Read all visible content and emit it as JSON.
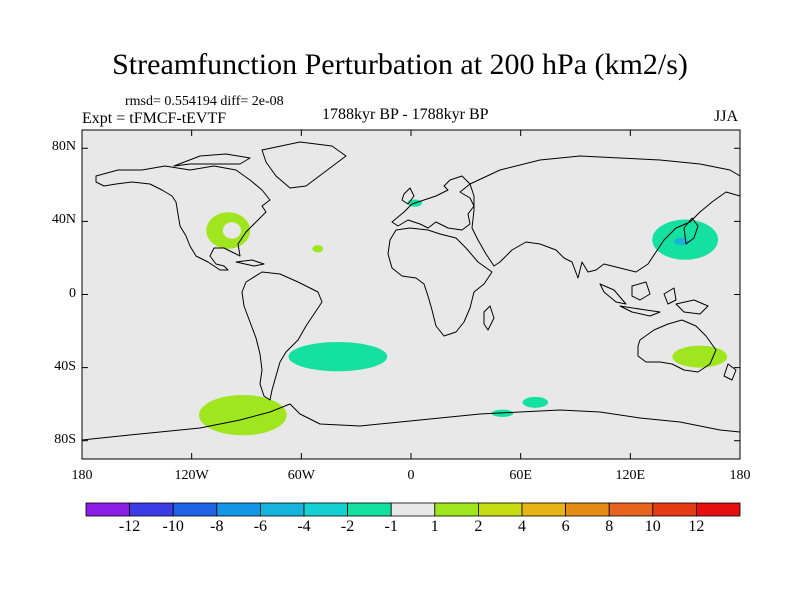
{
  "chart_data": {
    "type": "heatmap",
    "title": "Streamfunction Perturbation at 200 hPa (km2/s)",
    "stats_text": "rmsd= 0.554194  diff= 2e-08",
    "experiment_label": "Expt = tFMCF-tEVTF",
    "period_label": "1788kyr BP - 1788kyr BP",
    "season_label": "JJA",
    "x_range": [
      -180,
      180
    ],
    "y_range": [
      -90,
      90
    ],
    "x_ticks": [
      {
        "value": -180,
        "label": "180"
      },
      {
        "value": -120,
        "label": "120W"
      },
      {
        "value": -60,
        "label": "60W"
      },
      {
        "value": 0,
        "label": "0"
      },
      {
        "value": 60,
        "label": "60E"
      },
      {
        "value": 120,
        "label": "120E"
      },
      {
        "value": 180,
        "label": "180"
      }
    ],
    "y_ticks": [
      {
        "value": 80,
        "label": "80N"
      },
      {
        "value": 40,
        "label": "40N"
      },
      {
        "value": 0,
        "label": "0"
      },
      {
        "value": -40,
        "label": "40S"
      },
      {
        "value": -80,
        "label": "80S"
      }
    ],
    "colorbar": {
      "labels": [
        "-12",
        "-10",
        "-8",
        "-6",
        "-4",
        "-2",
        "-1",
        "1",
        "2",
        "4",
        "6",
        "8",
        "10",
        "12"
      ],
      "colors": [
        "#8a1ee6",
        "#3c3ce6",
        "#1e64e6",
        "#1496e6",
        "#14b4dc",
        "#14d2d2",
        "#14e0a0",
        "#e8e8e8",
        "#a0e61e",
        "#c8dc14",
        "#e6b414",
        "#e68c14",
        "#e6641e",
        "#e63c14",
        "#e60f0f"
      ]
    },
    "background_color": "#e8e8e8",
    "anomaly_regions": [
      {
        "name": "western-north-america",
        "center": [
          -100,
          35
        ],
        "radius": [
          12,
          10
        ],
        "color": "#a0e61e"
      },
      {
        "name": "west-atlantic-small",
        "center": [
          -51,
          25
        ],
        "radius": [
          3,
          2
        ],
        "color": "#a0e61e"
      },
      {
        "name": "north-sea",
        "center": [
          2,
          50
        ],
        "radius": [
          4,
          2
        ],
        "color": "#14e0a0"
      },
      {
        "name": "northwest-pacific",
        "center": [
          150,
          30
        ],
        "radius": [
          18,
          11
        ],
        "color": "#14e0a0"
      },
      {
        "name": "northwest-pacific-core",
        "center": [
          148,
          29
        ],
        "radius": [
          4,
          2
        ],
        "color": "#14b4dc"
      },
      {
        "name": "south-atlantic",
        "center": [
          -40,
          -34
        ],
        "radius": [
          27,
          8
        ],
        "color": "#14e0a0"
      },
      {
        "name": "southeast-pacific",
        "center": [
          -92,
          -66
        ],
        "radius": [
          24,
          11
        ],
        "color": "#a0e61e"
      },
      {
        "name": "south-indian",
        "center": [
          50,
          -65
        ],
        "radius": [
          6,
          2
        ],
        "color": "#14e0a0"
      },
      {
        "name": "south-indian-2",
        "center": [
          68,
          -59
        ],
        "radius": [
          7,
          3
        ],
        "color": "#14e0a0"
      },
      {
        "name": "tasman",
        "center": [
          158,
          -34
        ],
        "radius": [
          15,
          6
        ],
        "color": "#a0e61e"
      }
    ]
  }
}
